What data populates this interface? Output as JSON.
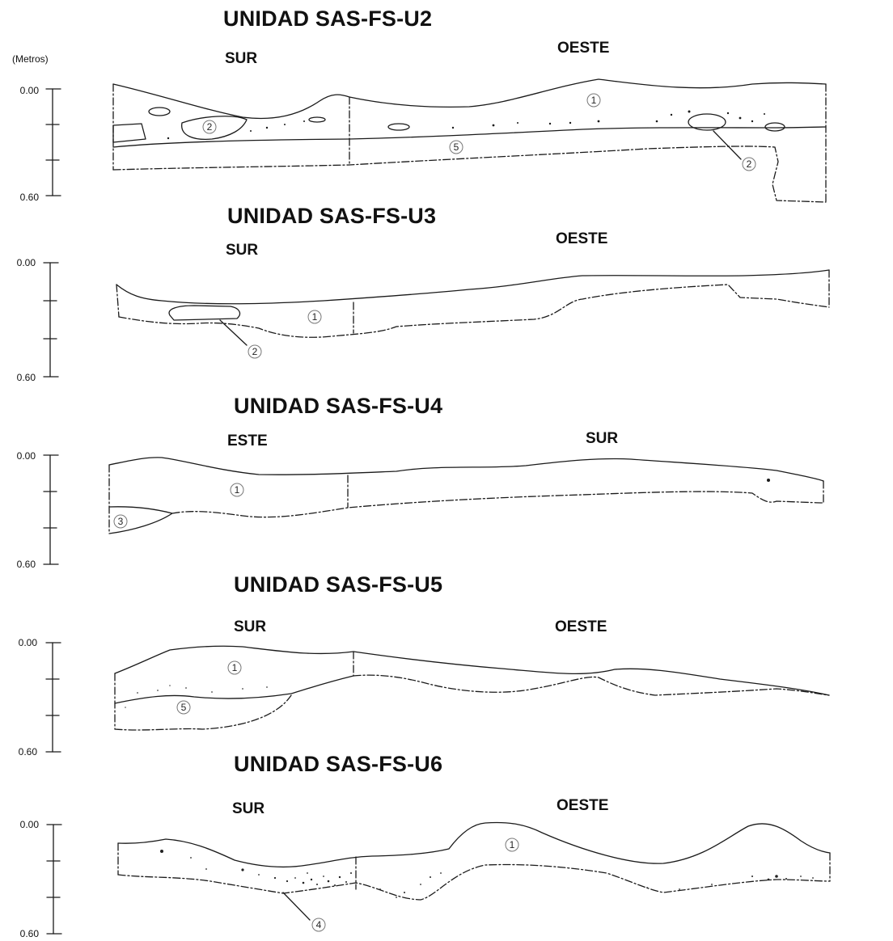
{
  "scale_unit": "(Metros)",
  "panels": [
    {
      "title": "UNIDAD SAS-FS-U2",
      "left_label": "SUR",
      "right_label": "OESTE",
      "tick_top": "0.00",
      "tick_bottom": "0.60",
      "layer_labels": [
        "1",
        "2",
        "5",
        "2"
      ]
    },
    {
      "title": "UNIDAD SAS-FS-U3",
      "left_label": "SUR",
      "right_label": "OESTE",
      "tick_top": "0.00",
      "tick_bottom": "0.60",
      "layer_labels": [
        "1",
        "2"
      ]
    },
    {
      "title": "UNIDAD SAS-FS-U4",
      "left_label": "ESTE",
      "right_label": "SUR",
      "tick_top": "0.00",
      "tick_bottom": "0.60",
      "layer_labels": [
        "1",
        "3"
      ]
    },
    {
      "title": "UNIDAD SAS-FS-U5",
      "left_label": "SUR",
      "right_label": "OESTE",
      "tick_top": "0.00",
      "tick_bottom": "0.60",
      "layer_labels": [
        "1",
        "5"
      ]
    },
    {
      "title": "UNIDAD SAS-FS-U6",
      "left_label": "SUR",
      "right_label": "OESTE",
      "tick_top": "0.00",
      "tick_bottom": "0.60",
      "layer_labels": [
        "1",
        "4"
      ]
    }
  ]
}
